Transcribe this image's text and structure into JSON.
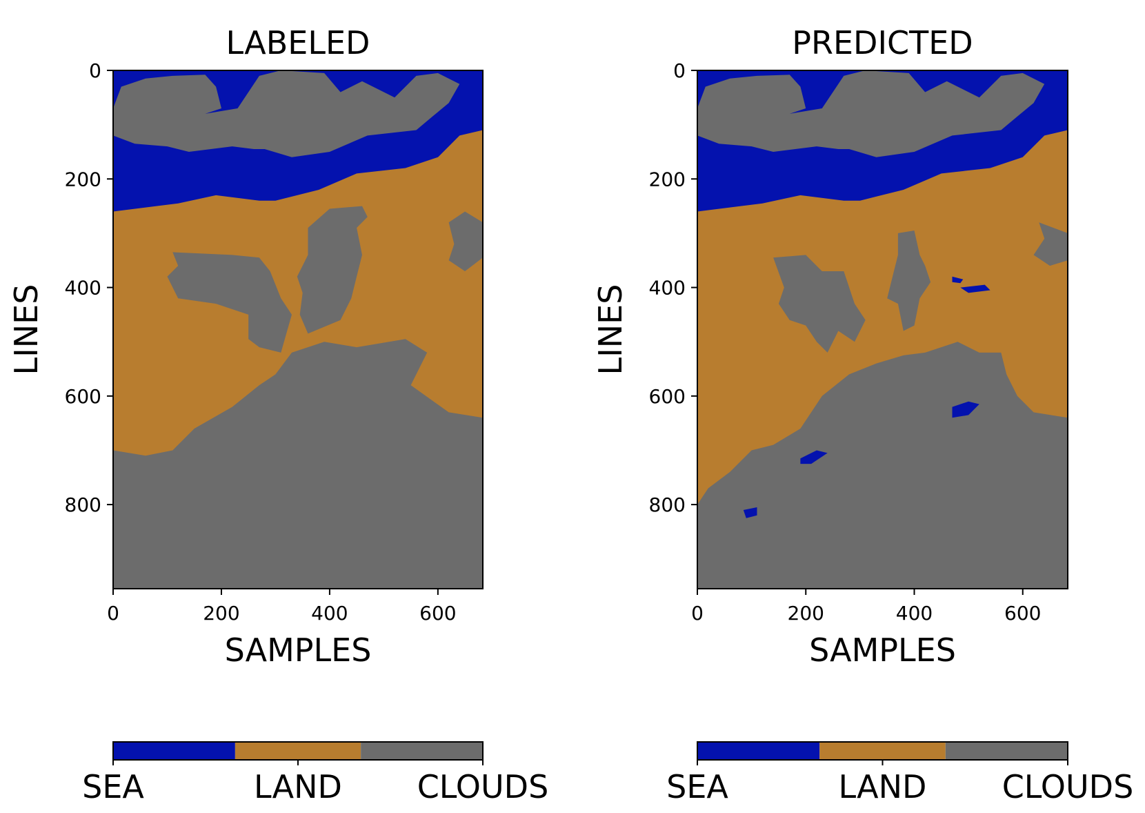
{
  "colors": {
    "sea": "#0412AE",
    "land": "#B87D2F",
    "clouds": "#6C6C6C"
  },
  "chart_data": [
    {
      "type": "heatmap",
      "title": "LABELED",
      "xlabel": "SAMPLES",
      "ylabel": "LINES",
      "xlim": [
        0,
        683
      ],
      "ylim": [
        955,
        0
      ],
      "xticks": [
        0,
        200,
        400,
        600
      ],
      "yticks": [
        0,
        200,
        400,
        600,
        800
      ],
      "classes": [
        "SEA",
        "LAND",
        "CLOUDS"
      ],
      "colorbar_labels": [
        "SEA",
        "LAND",
        "CLOUDS"
      ],
      "colorbar_splits": [
        0.33,
        0.67
      ],
      "grid": false,
      "regions": [
        {
          "class": "SEA",
          "points": [
            [
              0,
              0
            ],
            [
              683,
              0
            ],
            [
              683,
              110
            ],
            [
              640,
              120
            ],
            [
              600,
              160
            ],
            [
              540,
              180
            ],
            [
              450,
              190
            ],
            [
              380,
              220
            ],
            [
              300,
              240
            ],
            [
              270,
              240
            ],
            [
              190,
              230
            ],
            [
              120,
              245
            ],
            [
              80,
              250
            ],
            [
              0,
              260
            ]
          ]
        },
        {
          "class": "CLOUDS",
          "points": [
            [
              0,
              70
            ],
            [
              15,
              30
            ],
            [
              60,
              15
            ],
            [
              110,
              10
            ],
            [
              170,
              8
            ],
            [
              190,
              30
            ],
            [
              200,
              70
            ],
            [
              170,
              80
            ],
            [
              230,
              70
            ],
            [
              270,
              10
            ],
            [
              310,
              0
            ],
            [
              390,
              5
            ],
            [
              420,
              40
            ],
            [
              460,
              20
            ],
            [
              520,
              50
            ],
            [
              560,
              10
            ],
            [
              600,
              5
            ],
            [
              640,
              25
            ],
            [
              620,
              60
            ],
            [
              590,
              85
            ],
            [
              560,
              110
            ],
            [
              470,
              120
            ],
            [
              400,
              150
            ],
            [
              330,
              160
            ],
            [
              280,
              145
            ],
            [
              260,
              145
            ],
            [
              220,
              140
            ],
            [
              140,
              150
            ],
            [
              100,
              140
            ],
            [
              40,
              135
            ],
            [
              0,
              120
            ]
          ]
        },
        {
          "class": "CLOUDS",
          "points": [
            [
              110,
              335
            ],
            [
              220,
              340
            ],
            [
              270,
              345
            ],
            [
              290,
              370
            ],
            [
              310,
              420
            ],
            [
              330,
              450
            ],
            [
              310,
              520
            ],
            [
              270,
              510
            ],
            [
              250,
              495
            ],
            [
              250,
              450
            ],
            [
              190,
              430
            ],
            [
              120,
              420
            ],
            [
              100,
              380
            ],
            [
              120,
              360
            ]
          ]
        },
        {
          "class": "CLOUDS",
          "points": [
            [
              360,
              290
            ],
            [
              400,
              255
            ],
            [
              460,
              250
            ],
            [
              470,
              270
            ],
            [
              450,
              290
            ],
            [
              460,
              340
            ],
            [
              450,
              380
            ],
            [
              440,
              420
            ],
            [
              420,
              460
            ],
            [
              360,
              485
            ],
            [
              345,
              450
            ],
            [
              350,
              410
            ],
            [
              340,
              380
            ],
            [
              360,
              340
            ]
          ]
        },
        {
          "class": "CLOUDS",
          "points": [
            [
              620,
              280
            ],
            [
              650,
              260
            ],
            [
              683,
              280
            ],
            [
              683,
              345
            ],
            [
              650,
              370
            ],
            [
              620,
              350
            ],
            [
              630,
              320
            ]
          ]
        },
        {
          "class": "CLOUDS",
          "points": [
            [
              0,
              700
            ],
            [
              60,
              710
            ],
            [
              110,
              700
            ],
            [
              150,
              660
            ],
            [
              220,
              620
            ],
            [
              270,
              580
            ],
            [
              300,
              560
            ],
            [
              330,
              520
            ],
            [
              390,
              500
            ],
            [
              450,
              510
            ],
            [
              540,
              495
            ],
            [
              580,
              520
            ],
            [
              550,
              580
            ],
            [
              620,
              630
            ],
            [
              683,
              640
            ],
            [
              683,
              955
            ],
            [
              0,
              955
            ]
          ]
        }
      ]
    },
    {
      "type": "heatmap",
      "title": "PREDICTED",
      "xlabel": "SAMPLES",
      "ylabel": "LINES",
      "xlim": [
        0,
        683
      ],
      "ylim": [
        955,
        0
      ],
      "xticks": [
        0,
        200,
        400,
        600
      ],
      "yticks": [
        0,
        200,
        400,
        600,
        800
      ],
      "classes": [
        "SEA",
        "LAND",
        "CLOUDS"
      ],
      "colorbar_labels": [
        "SEA",
        "LAND",
        "CLOUDS"
      ],
      "colorbar_splits": [
        0.33,
        0.67
      ],
      "grid": false,
      "regions": [
        {
          "class": "SEA",
          "points": [
            [
              0,
              0
            ],
            [
              683,
              0
            ],
            [
              683,
              110
            ],
            [
              640,
              120
            ],
            [
              600,
              160
            ],
            [
              540,
              180
            ],
            [
              450,
              190
            ],
            [
              380,
              220
            ],
            [
              300,
              240
            ],
            [
              270,
              240
            ],
            [
              190,
              230
            ],
            [
              120,
              245
            ],
            [
              80,
              250
            ],
            [
              0,
              260
            ]
          ]
        },
        {
          "class": "CLOUDS",
          "points": [
            [
              0,
              70
            ],
            [
              15,
              30
            ],
            [
              60,
              15
            ],
            [
              110,
              10
            ],
            [
              170,
              8
            ],
            [
              190,
              30
            ],
            [
              200,
              70
            ],
            [
              170,
              80
            ],
            [
              230,
              70
            ],
            [
              270,
              10
            ],
            [
              310,
              0
            ],
            [
              390,
              5
            ],
            [
              420,
              40
            ],
            [
              460,
              20
            ],
            [
              520,
              50
            ],
            [
              560,
              10
            ],
            [
              600,
              5
            ],
            [
              640,
              25
            ],
            [
              620,
              60
            ],
            [
              590,
              85
            ],
            [
              560,
              110
            ],
            [
              470,
              120
            ],
            [
              400,
              150
            ],
            [
              330,
              160
            ],
            [
              280,
              145
            ],
            [
              260,
              145
            ],
            [
              220,
              140
            ],
            [
              140,
              150
            ],
            [
              100,
              140
            ],
            [
              40,
              135
            ],
            [
              0,
              120
            ]
          ]
        },
        {
          "class": "CLOUDS",
          "points": [
            [
              140,
              345
            ],
            [
              200,
              340
            ],
            [
              230,
              370
            ],
            [
              270,
              370
            ],
            [
              290,
              430
            ],
            [
              310,
              460
            ],
            [
              290,
              500
            ],
            [
              260,
              480
            ],
            [
              240,
              520
            ],
            [
              220,
              500
            ],
            [
              200,
              470
            ],
            [
              170,
              460
            ],
            [
              150,
              430
            ],
            [
              160,
              400
            ]
          ]
        },
        {
          "class": "CLOUDS",
          "points": [
            [
              370,
              300
            ],
            [
              400,
              295
            ],
            [
              410,
              340
            ],
            [
              420,
              360
            ],
            [
              430,
              390
            ],
            [
              410,
              420
            ],
            [
              400,
              470
            ],
            [
              380,
              480
            ],
            [
              370,
              430
            ],
            [
              350,
              420
            ],
            [
              360,
              380
            ],
            [
              370,
              340
            ]
          ]
        },
        {
          "class": "CLOUDS",
          "points": [
            [
              630,
              280
            ],
            [
              683,
              300
            ],
            [
              683,
              350
            ],
            [
              650,
              360
            ],
            [
              620,
              340
            ],
            [
              640,
              310
            ]
          ]
        },
        {
          "class": "CLOUDS",
          "points": [
            [
              0,
              800
            ],
            [
              20,
              770
            ],
            [
              60,
              740
            ],
            [
              100,
              700
            ],
            [
              140,
              690
            ],
            [
              190,
              660
            ],
            [
              230,
              600
            ],
            [
              280,
              560
            ],
            [
              330,
              540
            ],
            [
              380,
              525
            ],
            [
              420,
              520
            ],
            [
              480,
              500
            ],
            [
              520,
              520
            ],
            [
              560,
              520
            ],
            [
              570,
              560
            ],
            [
              590,
              600
            ],
            [
              620,
              630
            ],
            [
              683,
              640
            ],
            [
              683,
              955
            ],
            [
              0,
              955
            ]
          ]
        },
        {
          "class": "SEA",
          "points": [
            [
              470,
              620
            ],
            [
              500,
              610
            ],
            [
              520,
              615
            ],
            [
              500,
              635
            ],
            [
              470,
              640
            ]
          ]
        },
        {
          "class": "SEA",
          "points": [
            [
              190,
              715
            ],
            [
              220,
              700
            ],
            [
              240,
              705
            ],
            [
              210,
              725
            ],
            [
              190,
              725
            ]
          ]
        },
        {
          "class": "SEA",
          "points": [
            [
              85,
              810
            ],
            [
              110,
              805
            ],
            [
              110,
              820
            ],
            [
              90,
              825
            ]
          ]
        },
        {
          "class": "SEA",
          "points": [
            [
              485,
              400
            ],
            [
              530,
              395
            ],
            [
              540,
              405
            ],
            [
              500,
              410
            ]
          ]
        },
        {
          "class": "SEA",
          "points": [
            [
              470,
              380
            ],
            [
              490,
              385
            ],
            [
              485,
              392
            ],
            [
              470,
              390
            ]
          ]
        }
      ]
    }
  ]
}
